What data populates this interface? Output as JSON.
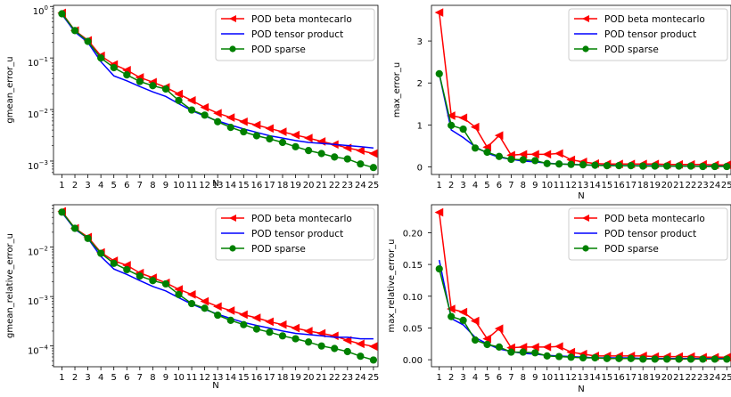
{
  "legend_labels": [
    "POD beta montecarlo",
    "POD tensor product",
    "POD sparse"
  ],
  "colors": {
    "beta": "#ff0000",
    "tensor": "#0000ff",
    "sparse": "#008000"
  },
  "chart_data": [
    {
      "type": "line",
      "xlabel": "N",
      "ylabel": "gmean_error_u",
      "yscale": "log",
      "ylim": [
        0.00055,
        1.05
      ],
      "yticks": [
        0.001,
        0.01,
        0.1,
        1
      ],
      "ytick_labels": [
        "10",
        "10",
        "10",
        "10"
      ],
      "ytick_exponents": [
        "−3",
        "−2",
        "−1",
        "0"
      ],
      "legend": "top-right",
      "x": [
        1,
        2,
        3,
        4,
        5,
        6,
        7,
        8,
        9,
        10,
        11,
        12,
        13,
        14,
        15,
        16,
        17,
        18,
        19,
        20,
        21,
        22,
        23,
        24,
        25
      ],
      "series": [
        {
          "name": "POD beta montecarlo",
          "key": "beta",
          "marker": "triangle-left",
          "values": [
            0.75,
            0.34,
            0.22,
            0.11,
            0.075,
            0.058,
            0.042,
            0.034,
            0.027,
            0.02,
            0.015,
            0.011,
            0.0085,
            0.007,
            0.0058,
            0.005,
            0.0043,
            0.0037,
            0.0032,
            0.0028,
            0.0024,
            0.0021,
            0.0018,
            0.0016,
            0.0014
          ]
        },
        {
          "name": "POD tensor product",
          "key": "tensor",
          "marker": "none",
          "values": [
            0.7,
            0.32,
            0.2,
            0.085,
            0.045,
            0.036,
            0.028,
            0.022,
            0.018,
            0.013,
            0.0095,
            0.0075,
            0.006,
            0.005,
            0.0042,
            0.0036,
            0.0031,
            0.0028,
            0.0025,
            0.0023,
            0.0022,
            0.0021,
            0.002,
            0.0019,
            0.0018
          ]
        },
        {
          "name": "POD sparse",
          "key": "sparse",
          "marker": "circle",
          "values": [
            0.72,
            0.34,
            0.21,
            0.1,
            0.065,
            0.047,
            0.035,
            0.029,
            0.025,
            0.015,
            0.0098,
            0.0078,
            0.0058,
            0.0045,
            0.0037,
            0.0031,
            0.0027,
            0.0023,
            0.0019,
            0.0016,
            0.0014,
            0.0012,
            0.0011,
            0.00088,
            0.00075
          ]
        }
      ]
    },
    {
      "type": "line",
      "xlabel": "N",
      "ylabel": "max_error_u",
      "yscale": "linear",
      "ylim": [
        -0.18,
        3.85
      ],
      "yticks": [
        0,
        1,
        2,
        3
      ],
      "ytick_labels": [
        "0",
        "1",
        "2",
        "3"
      ],
      "legend": "top-right",
      "x": [
        1,
        2,
        3,
        4,
        5,
        6,
        7,
        8,
        9,
        10,
        11,
        12,
        13,
        14,
        15,
        16,
        17,
        18,
        19,
        20,
        21,
        22,
        23,
        24,
        25
      ],
      "series": [
        {
          "name": "POD beta montecarlo",
          "key": "beta",
          "marker": "triangle-left",
          "values": [
            3.68,
            1.22,
            1.17,
            0.95,
            0.47,
            0.75,
            0.28,
            0.3,
            0.3,
            0.3,
            0.32,
            0.17,
            0.12,
            0.08,
            0.07,
            0.07,
            0.07,
            0.07,
            0.07,
            0.06,
            0.06,
            0.06,
            0.06,
            0.05,
            0.05
          ]
        },
        {
          "name": "POD tensor product",
          "key": "tensor",
          "marker": "none",
          "values": [
            2.22,
            0.88,
            0.7,
            0.48,
            0.33,
            0.23,
            0.18,
            0.14,
            0.12,
            0.09,
            0.07,
            0.06,
            0.05,
            0.04,
            0.04,
            0.03,
            0.03,
            0.03,
            0.03,
            0.02,
            0.02,
            0.02,
            0.02,
            0.02,
            0.02
          ]
        },
        {
          "name": "POD sparse",
          "key": "sparse",
          "marker": "circle",
          "values": [
            2.22,
            0.99,
            0.9,
            0.45,
            0.35,
            0.25,
            0.18,
            0.17,
            0.15,
            0.08,
            0.07,
            0.06,
            0.05,
            0.04,
            0.03,
            0.03,
            0.03,
            0.02,
            0.02,
            0.02,
            0.02,
            0.02,
            0.01,
            0.01,
            0.01
          ]
        }
      ]
    },
    {
      "type": "line",
      "xlabel": "N",
      "ylabel": "gmean_relative_error_u",
      "yscale": "log",
      "ylim": [
        3.8e-05,
        0.072
      ],
      "yticks": [
        0.0001,
        0.001,
        0.01
      ],
      "ytick_labels": [
        "10",
        "10",
        "10"
      ],
      "ytick_exponents": [
        "−4",
        "−3",
        "−2"
      ],
      "legend": "top-right",
      "x": [
        1,
        2,
        3,
        4,
        5,
        6,
        7,
        8,
        9,
        10,
        11,
        12,
        13,
        14,
        15,
        16,
        17,
        18,
        19,
        20,
        21,
        22,
        23,
        24,
        25
      ],
      "series": [
        {
          "name": "POD beta montecarlo",
          "key": "beta",
          "marker": "triangle-left",
          "values": [
            0.053,
            0.024,
            0.016,
            0.0078,
            0.0053,
            0.0043,
            0.003,
            0.0024,
            0.0019,
            0.0014,
            0.0011,
            0.0008,
            0.00063,
            0.00052,
            0.00043,
            0.00037,
            0.00031,
            0.00027,
            0.00023,
            0.0002,
            0.00018,
            0.00016,
            0.00013,
            0.00011,
            9.8e-05
          ]
        },
        {
          "name": "POD tensor product",
          "key": "tensor",
          "marker": "none",
          "values": [
            0.05,
            0.023,
            0.015,
            0.0065,
            0.0036,
            0.0028,
            0.0021,
            0.0016,
            0.0013,
            0.00095,
            0.0007,
            0.00055,
            0.00044,
            0.00036,
            0.0003,
            0.00026,
            0.00023,
            0.0002,
            0.00018,
            0.00017,
            0.00016,
            0.00015,
            0.00015,
            0.00014,
            0.00014
          ]
        },
        {
          "name": "POD sparse",
          "key": "sparse",
          "marker": "circle",
          "values": [
            0.051,
            0.024,
            0.015,
            0.0075,
            0.0047,
            0.0035,
            0.0026,
            0.0021,
            0.0018,
            0.0011,
            0.00072,
            0.00058,
            0.00042,
            0.00033,
            0.00027,
            0.00022,
            0.00019,
            0.00016,
            0.00014,
            0.00012,
            0.0001,
            8.9e-05,
            7.7e-05,
            6.2e-05,
            5.2e-05
          ]
        }
      ]
    },
    {
      "type": "line",
      "xlabel": "N",
      "ylabel": "max_relative_error_u",
      "yscale": "linear",
      "ylim": [
        -0.011,
        0.244
      ],
      "yticks": [
        0,
        0.05,
        0.1,
        0.15,
        0.2
      ],
      "ytick_labels": [
        "0.00",
        "0.05",
        "0.10",
        "0.15",
        "0.20"
      ],
      "legend": "top-right",
      "x": [
        1,
        2,
        3,
        4,
        5,
        6,
        7,
        8,
        9,
        10,
        11,
        12,
        13,
        14,
        15,
        16,
        17,
        18,
        19,
        20,
        21,
        22,
        23,
        24,
        25
      ],
      "series": [
        {
          "name": "POD beta montecarlo",
          "key": "beta",
          "marker": "triangle-left",
          "values": [
            0.232,
            0.08,
            0.075,
            0.061,
            0.033,
            0.049,
            0.019,
            0.02,
            0.02,
            0.02,
            0.021,
            0.012,
            0.009,
            0.006,
            0.006,
            0.006,
            0.006,
            0.006,
            0.005,
            0.005,
            0.005,
            0.005,
            0.004,
            0.004,
            0.004
          ]
        },
        {
          "name": "POD tensor product",
          "key": "tensor",
          "marker": "none",
          "values": [
            0.157,
            0.065,
            0.055,
            0.035,
            0.025,
            0.017,
            0.013,
            0.01,
            0.009,
            0.007,
            0.006,
            0.005,
            0.004,
            0.003,
            0.003,
            0.003,
            0.003,
            0.002,
            0.002,
            0.002,
            0.002,
            0.002,
            0.002,
            0.002,
            0.002
          ]
        },
        {
          "name": "POD sparse",
          "key": "sparse",
          "marker": "circle",
          "values": [
            0.143,
            0.068,
            0.062,
            0.031,
            0.024,
            0.02,
            0.012,
            0.012,
            0.011,
            0.006,
            0.005,
            0.004,
            0.003,
            0.003,
            0.002,
            0.002,
            0.002,
            0.001,
            0.001,
            0.001,
            0.001,
            0.001,
            0.001,
            0.001,
            0.001
          ]
        }
      ]
    }
  ]
}
